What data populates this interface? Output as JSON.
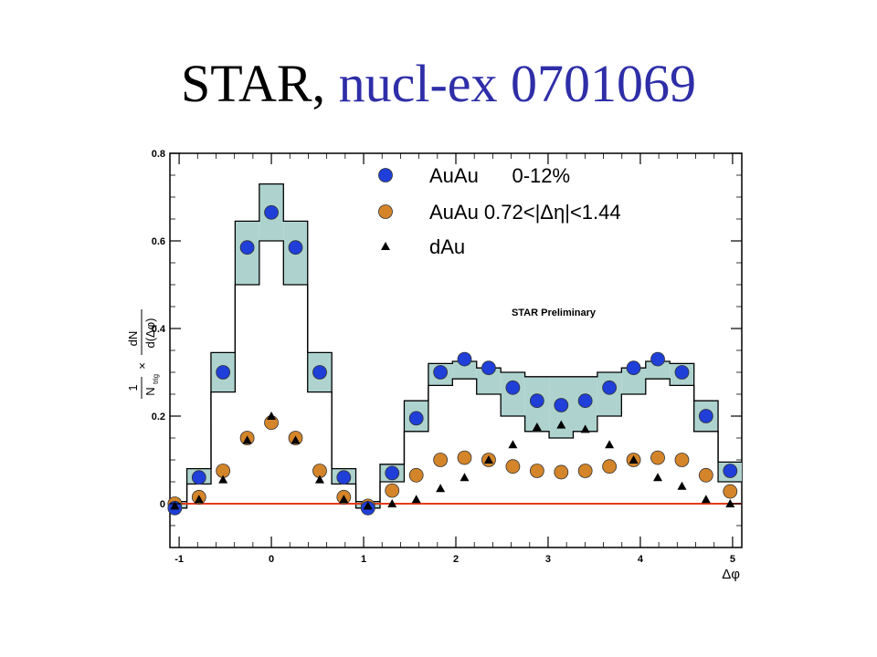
{
  "title": {
    "prefix": "STAR, ",
    "reference": "nucl-ex 0701069",
    "reference_color": "#2e2ea8"
  },
  "chart_data": {
    "type": "scatter",
    "xlabel": "Δφ",
    "ylabel": "1/N_trig × dN/d(Δφ)",
    "ylabel_parts": {
      "pre_fraction": "1",
      "pre_den": "N",
      "pre_den_sub": "trig",
      "times": "×",
      "num": "dN",
      "den": "d(Δφ)"
    },
    "xlim": [
      -1.1,
      5.1
    ],
    "ylim": [
      -0.1,
      0.8
    ],
    "xticks": [
      -1,
      0,
      1,
      2,
      3,
      4,
      5
    ],
    "yticks": [
      0,
      0.2,
      0.4,
      0.6,
      0.8
    ],
    "xtick_labels": [
      "-1",
      "0",
      "1",
      "2",
      "3",
      "4",
      "5"
    ],
    "ytick_labels": [
      "0",
      "0.2",
      "0.4",
      "0.6",
      "0.8"
    ],
    "annotation": "STAR Preliminary",
    "legend_position": "top-right",
    "baseline": {
      "y": 0,
      "color": "#e63a1a"
    },
    "x": [
      -1.047,
      -0.785,
      -0.524,
      -0.262,
      0.0,
      0.262,
      0.524,
      0.785,
      1.047,
      1.309,
      1.571,
      1.833,
      2.094,
      2.356,
      2.618,
      2.88,
      3.142,
      3.403,
      3.665,
      3.927,
      4.189,
      4.451,
      4.712,
      4.974
    ],
    "series": [
      {
        "name": "AuAu      0-12%",
        "marker": "circle",
        "color": "#1f3fd8",
        "values": [
          -0.01,
          0.06,
          0.3,
          0.585,
          0.665,
          0.585,
          0.3,
          0.06,
          -0.01,
          0.07,
          0.195,
          0.3,
          0.33,
          0.31,
          0.265,
          0.235,
          0.225,
          0.235,
          0.265,
          0.31,
          0.33,
          0.3,
          0.2,
          0.075
        ],
        "band_low": [
          -0.01,
          0.045,
          0.255,
          0.5,
          0.6,
          0.5,
          0.255,
          0.045,
          -0.01,
          0.05,
          0.165,
          0.27,
          0.285,
          0.25,
          0.2,
          0.165,
          0.15,
          0.165,
          0.2,
          0.25,
          0.285,
          0.27,
          0.165,
          0.05
        ],
        "band_high": [
          0.005,
          0.08,
          0.345,
          0.645,
          0.73,
          0.645,
          0.345,
          0.08,
          0.005,
          0.09,
          0.235,
          0.32,
          0.325,
          0.31,
          0.3,
          0.29,
          0.29,
          0.29,
          0.3,
          0.31,
          0.325,
          0.32,
          0.235,
          0.095
        ],
        "band_color": "#aed3cf"
      },
      {
        "name": "AuAu 0.72<|Δη|<1.44",
        "marker": "circle",
        "color": "#d4852a",
        "values": [
          0.0,
          0.015,
          0.075,
          0.15,
          0.185,
          0.15,
          0.075,
          0.015,
          -0.005,
          0.03,
          0.065,
          0.1,
          0.105,
          0.1,
          0.085,
          0.075,
          0.072,
          0.075,
          0.085,
          0.1,
          0.105,
          0.1,
          0.065,
          0.028
        ]
      },
      {
        "name": "dAu",
        "marker": "triangle",
        "color": "#000000",
        "values": [
          -0.005,
          0.01,
          0.055,
          0.145,
          0.2,
          0.145,
          0.055,
          0.01,
          -0.005,
          0.0,
          0.01,
          0.035,
          0.06,
          0.1,
          0.135,
          0.175,
          0.18,
          0.17,
          0.135,
          0.1,
          0.06,
          0.04,
          0.01,
          0.0
        ]
      }
    ]
  }
}
